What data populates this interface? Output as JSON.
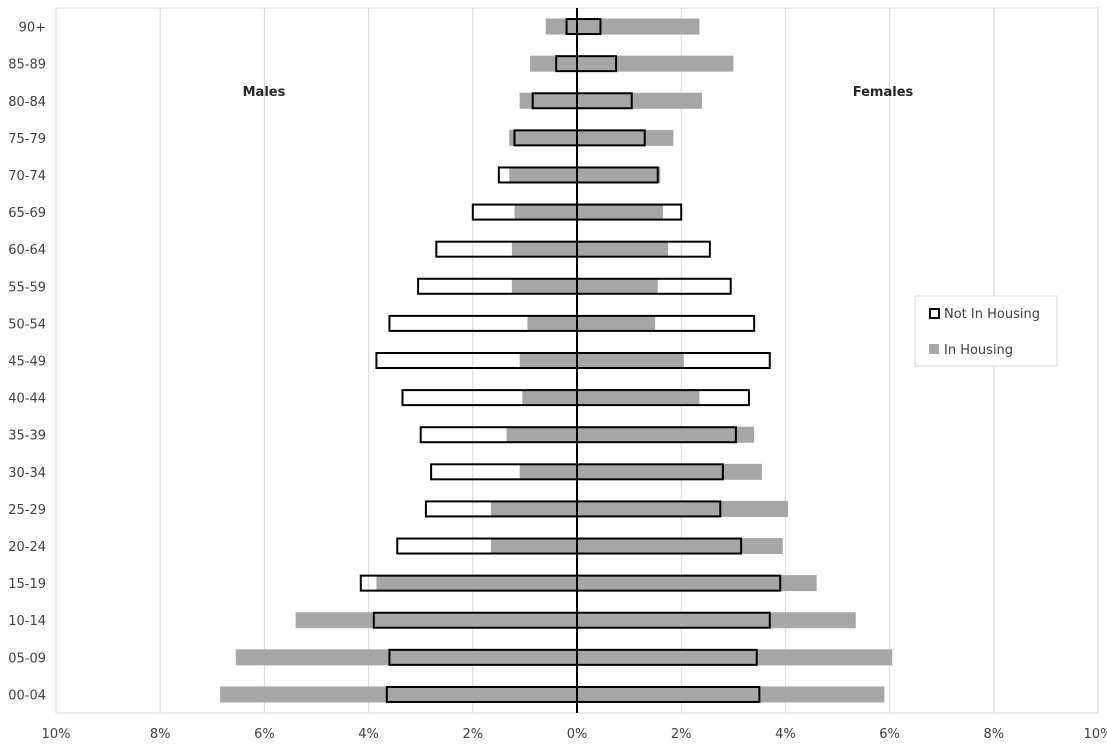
{
  "chart_data": {
    "type": "bar",
    "orientation": "horizontal",
    "subtype": "population-pyramid",
    "categories": [
      "00-04",
      "05-09",
      "10-14",
      "15-19",
      "20-24",
      "25-29",
      "30-34",
      "35-39",
      "40-44",
      "45-49",
      "50-54",
      "55-59",
      "60-64",
      "65-69",
      "70-74",
      "75-79",
      "80-84",
      "85-89",
      "90+"
    ],
    "side_labels": {
      "left": "Males",
      "right": "Females"
    },
    "series": [
      {
        "name": "In Housing",
        "style": "filled",
        "color": "#a6a6a6",
        "males": [
          -6.85,
          -6.55,
          -5.4,
          -3.85,
          -1.65,
          -1.65,
          -1.1,
          -1.35,
          -1.05,
          -1.1,
          -0.95,
          -1.25,
          -1.25,
          -1.2,
          -1.3,
          -1.3,
          -1.1,
          -0.9,
          -0.6
        ],
        "females": [
          5.9,
          6.05,
          5.35,
          4.6,
          3.95,
          4.05,
          3.55,
          3.4,
          2.35,
          2.05,
          1.5,
          1.55,
          1.75,
          1.65,
          1.6,
          1.85,
          2.4,
          3.0,
          2.35
        ]
      },
      {
        "name": "Not In Housing",
        "style": "outline",
        "color": "#000000",
        "males": [
          -3.65,
          -3.6,
          -3.9,
          -4.15,
          -3.45,
          -2.9,
          -2.8,
          -3.0,
          -3.35,
          -3.85,
          -3.6,
          -3.05,
          -2.7,
          -2.0,
          -1.5,
          -1.2,
          -0.85,
          -0.4,
          -0.2
        ],
        "females": [
          3.5,
          3.45,
          3.7,
          3.9,
          3.15,
          2.75,
          2.8,
          3.05,
          3.3,
          3.7,
          3.4,
          2.95,
          2.55,
          2.0,
          1.55,
          1.3,
          1.05,
          0.75,
          0.45
        ]
      }
    ],
    "x_ticks": [
      "10%",
      "8%",
      "6%",
      "4%",
      "2%",
      "0%",
      "2%",
      "4%",
      "6%",
      "8%",
      "10%"
    ],
    "xlim": [
      -10,
      10
    ],
    "grid": "vertical",
    "legend_position": "right",
    "legend": [
      "Not In Housing",
      "In Housing"
    ]
  }
}
